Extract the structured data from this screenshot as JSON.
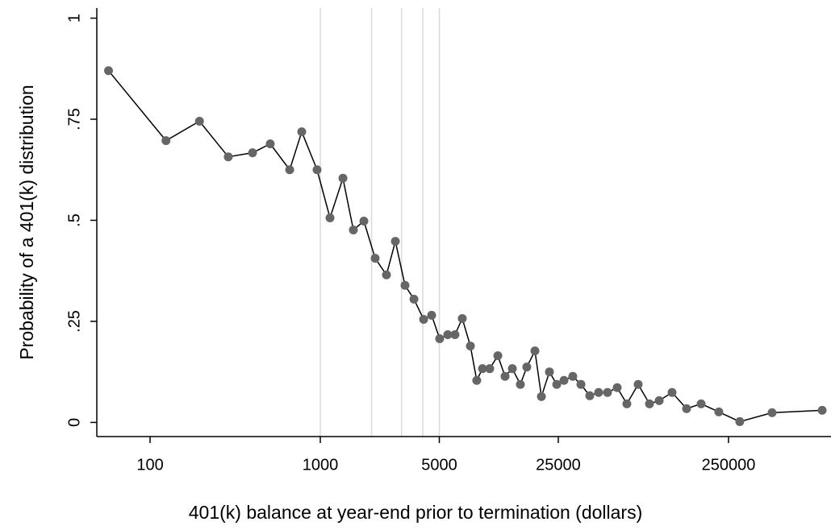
{
  "chart_data": {
    "type": "line",
    "xlabel": "401(k) balance at year-end prior to termination (dollars)",
    "ylabel": "Probability of a 401(k) distribution",
    "xscale": "log",
    "xlim": [
      50,
      1000000
    ],
    "ylim": [
      -0.035,
      1.025
    ],
    "xticks": [
      100,
      1000,
      5000,
      25000,
      250000
    ],
    "yticks": [
      0,
      {
        "value": 0.25,
        "label": ".25"
      },
      {
        "value": 0.5,
        "label": ".5"
      },
      {
        "value": 0.75,
        "label": ".75"
      },
      1
    ],
    "reference_lines": [
      1000,
      2000,
      3000,
      4000,
      5000
    ],
    "reference_line_color": "#d9d9d9",
    "line_color": "#000000",
    "marker_color": "#666666",
    "x": [
      57,
      124,
      195,
      288,
      400,
      508,
      661,
      778,
      957,
      1140,
      1358,
      1564,
      1803,
      2100,
      2447,
      2760,
      3145,
      3548,
      4045,
      4508,
      5025,
      5608,
      6180,
      6822,
      7614,
      8300,
      8970,
      9890,
      11040,
      12170,
      13430,
      14970,
      16330,
      18230,
      19900,
      22180,
      24480,
      27000,
      30420,
      33960,
      38280,
      43150,
      48640,
      55460,
      63210,
      73650,
      85850,
      97900,
      116500,
      141800,
      172600,
      219300,
      291100,
      450800,
      887200
    ],
    "values": [
      0.87,
      0.697,
      0.745,
      0.657,
      0.667,
      0.689,
      0.625,
      0.719,
      0.625,
      0.506,
      0.604,
      0.476,
      0.498,
      0.406,
      0.365,
      0.448,
      0.339,
      0.305,
      0.255,
      0.265,
      0.207,
      0.217,
      0.217,
      0.257,
      0.189,
      0.104,
      0.133,
      0.133,
      0.165,
      0.114,
      0.133,
      0.094,
      0.137,
      0.177,
      0.064,
      0.125,
      0.094,
      0.104,
      0.114,
      0.094,
      0.066,
      0.074,
      0.074,
      0.086,
      0.046,
      0.094,
      0.046,
      0.054,
      0.074,
      0.034,
      0.046,
      0.026,
      0.002,
      0.024,
      0.03
    ]
  }
}
